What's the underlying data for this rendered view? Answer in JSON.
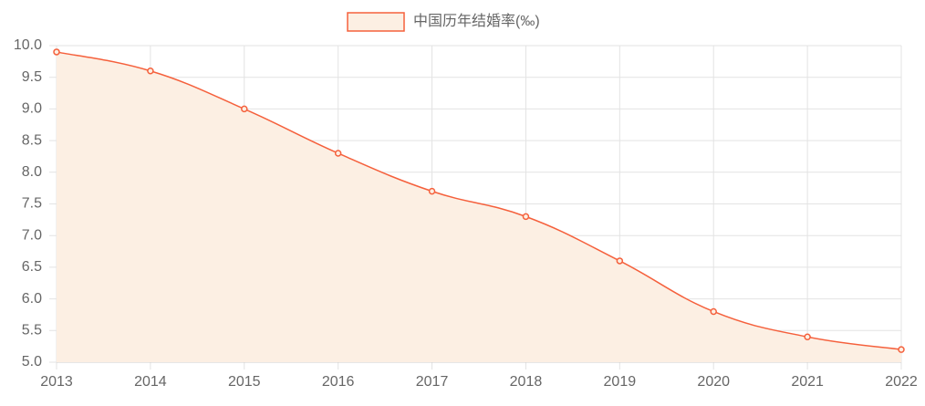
{
  "chart_data": {
    "type": "line",
    "categories": [
      "2013",
      "2014",
      "2015",
      "2016",
      "2017",
      "2018",
      "2019",
      "2020",
      "2021",
      "2022"
    ],
    "series": [
      {
        "name": "中国历年结婚率(‰)",
        "color": "#f5603c",
        "fill": "#fcefe3",
        "values": [
          9.9,
          9.6,
          9.0,
          8.3,
          7.7,
          7.3,
          6.6,
          5.8,
          5.4,
          5.2
        ]
      }
    ],
    "ylim": [
      5,
      10
    ],
    "yticks": [
      {
        "value": 5,
        "label": "5.0"
      },
      5.5,
      {
        "value": 6,
        "label": "6.0"
      },
      6.5,
      {
        "value": 7,
        "label": "7.0"
      },
      7.5,
      {
        "value": 8,
        "label": "8.0"
      },
      8.5,
      {
        "value": 9,
        "label": "9.0"
      },
      9.5,
      {
        "value": 10,
        "label": "10.0"
      }
    ],
    "grid": true,
    "legend": "top"
  }
}
